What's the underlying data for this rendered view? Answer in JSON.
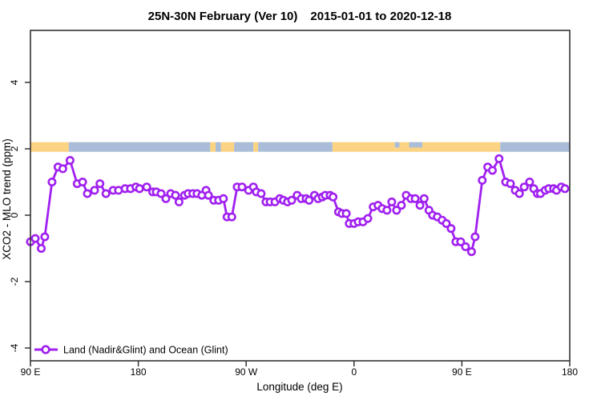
{
  "title": {
    "left": "25N-30N February (Ver 10)",
    "right": "2015-01-01 to 2020-12-18"
  },
  "legend": {
    "label": "Land (Nadir&Glint) and Ocean (Glint)"
  },
  "colors": {
    "series": "#A020F0",
    "marker_fill": "#ffffff",
    "land_band": "#FBD382",
    "ocean_band": "#A9BCD8",
    "axis": "#333333",
    "text": "#000000",
    "background": "#ffffff"
  },
  "axes": {
    "x": {
      "label": "Longitude (deg E)"
    },
    "y": {
      "label": "XCO2 - MLO trend (ppm)"
    }
  },
  "chart_data": {
    "type": "line",
    "title": "25N-30N February (Ver 10)  2015-01-01 to 2020-12-18",
    "xlabel": "Longitude (deg E)",
    "ylabel": "XCO2 - MLO trend (ppm)",
    "xlim": [
      90,
      540
    ],
    "ylim": [
      -4.4,
      5.6
    ],
    "grid": false,
    "legend_position": "bottom-left",
    "x_ticks": [
      {
        "value": 90,
        "label": "90 E"
      },
      {
        "value": 180,
        "label": "180"
      },
      {
        "value": 270,
        "label": "90 W"
      },
      {
        "value": 360,
        "label": "0"
      },
      {
        "value": 450,
        "label": "90 E"
      },
      {
        "value": 540,
        "label": "180"
      }
    ],
    "y_ticks": [
      {
        "value": 4,
        "label": "4"
      },
      {
        "value": 2,
        "label": "2"
      },
      {
        "value": 0,
        "label": "0"
      },
      {
        "value": -2,
        "label": "-2"
      },
      {
        "value": -4,
        "label": "-4"
      }
    ],
    "land_ocean_band": {
      "top_value": 2.2,
      "bottom_value": 1.91,
      "segments": [
        {
          "from": 90,
          "to": 122,
          "type": "land"
        },
        {
          "from": 122,
          "to": 240,
          "type": "ocean"
        },
        {
          "from": 240,
          "to": 244.5,
          "type": "land"
        },
        {
          "from": 244.5,
          "to": 249,
          "type": "ocean"
        },
        {
          "from": 249,
          "to": 260,
          "type": "land"
        },
        {
          "from": 260,
          "to": 276,
          "type": "ocean"
        },
        {
          "from": 276,
          "to": 280,
          "type": "land"
        },
        {
          "from": 280,
          "to": 342,
          "type": "ocean"
        },
        {
          "from": 342,
          "to": 394,
          "type": "land"
        },
        {
          "from": 394,
          "to": 398,
          "type": "ocean",
          "partial": true
        },
        {
          "from": 398,
          "to": 406,
          "type": "land"
        },
        {
          "from": 406,
          "to": 417,
          "type": "ocean",
          "partial": true
        },
        {
          "from": 417,
          "to": 482,
          "type": "land"
        },
        {
          "from": 482,
          "to": 540,
          "type": "ocean"
        }
      ]
    },
    "series": [
      {
        "name": "Land (Nadir&Glint) and Ocean (Glint)",
        "color": "#A020F0",
        "marker": "open-circle",
        "points": [
          [
            90,
            -0.8
          ],
          [
            94,
            -0.7
          ],
          [
            99,
            -1.0
          ],
          [
            102,
            -0.65
          ],
          [
            108,
            1.0
          ],
          [
            113,
            1.45
          ],
          [
            117,
            1.4
          ],
          [
            123,
            1.65
          ],
          [
            129,
            0.95
          ],
          [
            133.5,
            1.0
          ],
          [
            137.5,
            0.65
          ],
          [
            143.5,
            0.75
          ],
          [
            148,
            0.95
          ],
          [
            153,
            0.65
          ],
          [
            159,
            0.75
          ],
          [
            163.5,
            0.75
          ],
          [
            169,
            0.8
          ],
          [
            173.5,
            0.8
          ],
          [
            178,
            0.85
          ],
          [
            181,
            0.8
          ],
          [
            187,
            0.85
          ],
          [
            192,
            0.7
          ],
          [
            195,
            0.7
          ],
          [
            199,
            0.65
          ],
          [
            203,
            0.5
          ],
          [
            207,
            0.65
          ],
          [
            211,
            0.6
          ],
          [
            214,
            0.4
          ],
          [
            218.5,
            0.6
          ],
          [
            221.5,
            0.65
          ],
          [
            225.5,
            0.65
          ],
          [
            229,
            0.65
          ],
          [
            233,
            0.6
          ],
          [
            236.5,
            0.75
          ],
          [
            238.5,
            0.6
          ],
          [
            243,
            0.45
          ],
          [
            247,
            0.45
          ],
          [
            251,
            0.5
          ],
          [
            254,
            -0.05
          ],
          [
            258,
            -0.05
          ],
          [
            262.5,
            0.85
          ],
          [
            266.5,
            0.85
          ],
          [
            272,
            0.75
          ],
          [
            276,
            0.85
          ],
          [
            278.5,
            0.7
          ],
          [
            282.5,
            0.65
          ],
          [
            286.5,
            0.4
          ],
          [
            290,
            0.4
          ],
          [
            294,
            0.4
          ],
          [
            298,
            0.5
          ],
          [
            301,
            0.45
          ],
          [
            304.5,
            0.4
          ],
          [
            308,
            0.45
          ],
          [
            312.5,
            0.6
          ],
          [
            316,
            0.5
          ],
          [
            320,
            0.5
          ],
          [
            322.5,
            0.45
          ],
          [
            327,
            0.6
          ],
          [
            330,
            0.5
          ],
          [
            333.5,
            0.55
          ],
          [
            336,
            0.6
          ],
          [
            340,
            0.6
          ],
          [
            342.5,
            0.55
          ],
          [
            347,
            0.1
          ],
          [
            350,
            0.05
          ],
          [
            353.5,
            0.05
          ],
          [
            356,
            -0.25
          ],
          [
            360,
            -0.25
          ],
          [
            363.5,
            -0.2
          ],
          [
            367.5,
            -0.2
          ],
          [
            371.5,
            -0.1
          ],
          [
            376,
            0.25
          ],
          [
            380,
            0.3
          ],
          [
            383.5,
            0.2
          ],
          [
            387.5,
            0.15
          ],
          [
            391.5,
            0.4
          ],
          [
            395.5,
            0.15
          ],
          [
            399.5,
            0.3
          ],
          [
            403.5,
            0.6
          ],
          [
            407.5,
            0.5
          ],
          [
            411,
            0.5
          ],
          [
            415,
            0.3
          ],
          [
            418.5,
            0.5
          ],
          [
            422.5,
            0.15
          ],
          [
            425.5,
            0.0
          ],
          [
            429.5,
            -0.05
          ],
          [
            433.5,
            -0.15
          ],
          [
            437,
            -0.25
          ],
          [
            441,
            -0.4
          ],
          [
            445,
            -0.8
          ],
          [
            449,
            -0.8
          ],
          [
            453,
            -0.95
          ],
          [
            458,
            -1.1
          ],
          [
            461,
            -0.65
          ],
          [
            467,
            1.05
          ],
          [
            471.5,
            1.45
          ],
          [
            475.5,
            1.35
          ],
          [
            481,
            1.7
          ],
          [
            486.5,
            1.0
          ],
          [
            490.5,
            0.95
          ],
          [
            494.5,
            0.75
          ],
          [
            498,
            0.65
          ],
          [
            502,
            0.85
          ],
          [
            506.5,
            1.0
          ],
          [
            510,
            0.8
          ],
          [
            513,
            0.65
          ],
          [
            515.5,
            0.65
          ],
          [
            519.5,
            0.75
          ],
          [
            522.5,
            0.8
          ],
          [
            526.5,
            0.8
          ],
          [
            529,
            0.75
          ],
          [
            533,
            0.85
          ],
          [
            536,
            0.8
          ]
        ]
      }
    ]
  }
}
